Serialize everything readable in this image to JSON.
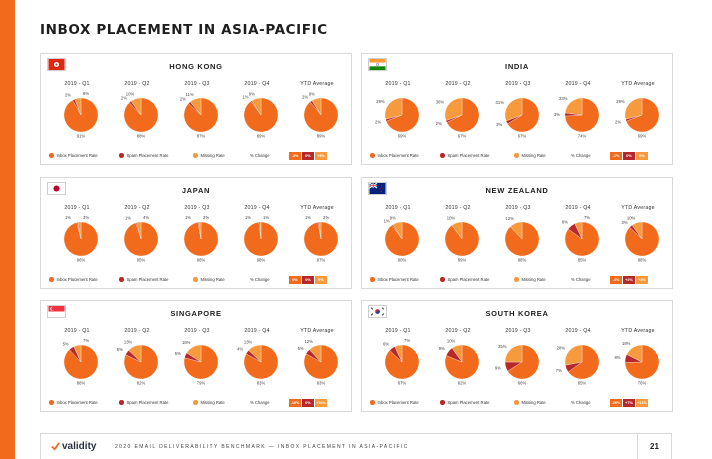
{
  "page": {
    "title": "INBOX PLACEMENT IN ASIA-PACIFIC",
    "footer_text": "2020 EMAIL DELIVERABILITY BENCHMARK — INBOX PLACEMENT IN ASIA-PACIFIC",
    "page_number": "21",
    "logo_text": "validity"
  },
  "colors": {
    "inbox": "#f26b1d",
    "spam": "#b8282a",
    "missing": "#f79a3e",
    "accent_bar": "#f26b1d"
  },
  "legend": {
    "inbox": "Inbox Placement Rate",
    "spam": "Spam Placement Rate",
    "missing": "Missing Rate",
    "change": "% Change"
  },
  "columns": [
    "2019 - Q1",
    "2019 - Q2",
    "2019 - Q3",
    "2019 - Q4",
    "YTD Average"
  ],
  "chart_data": [
    {
      "type": "pie",
      "country": "HONG KONG",
      "flag": "hong-kong-flag",
      "categories": [
        "Inbox Placement Rate",
        "Spam Placement Rate",
        "Missing Rate"
      ],
      "pies": [
        {
          "label": "2019 - Q1",
          "values": [
            91,
            2,
            6
          ],
          "labels": [
            "91%",
            "2%",
            "6%"
          ]
        },
        {
          "label": "2019 - Q2",
          "values": [
            88,
            2,
            10
          ],
          "labels": [
            "88%",
            "2%",
            "10%"
          ]
        },
        {
          "label": "2019 - Q3",
          "values": [
            87,
            2,
            11
          ],
          "labels": [
            "87%",
            "2%",
            "11%"
          ]
        },
        {
          "label": "2019 - Q4",
          "values": [
            89,
            1,
            9
          ],
          "labels": [
            "89%",
            "1%",
            "9%"
          ]
        },
        {
          "label": "YTD Average",
          "values": [
            89,
            2,
            9
          ],
          "labels": [
            "89%",
            "2%",
            "9%"
          ]
        }
      ],
      "change": [
        "-3%",
        "0%",
        "+3%"
      ]
    },
    {
      "type": "pie",
      "country": "INDIA",
      "flag": "india-flag",
      "categories": [
        "Inbox Placement Rate",
        "Spam Placement Rate",
        "Missing Rate"
      ],
      "pies": [
        {
          "label": "2019 - Q1",
          "values": [
            69,
            2,
            29
          ],
          "labels": [
            "69%",
            "2%",
            "29%"
          ]
        },
        {
          "label": "2019 - Q2",
          "values": [
            67,
            2,
            30
          ],
          "labels": [
            "67%",
            "2%",
            "30%"
          ]
        },
        {
          "label": "2019 - Q3",
          "values": [
            67,
            3,
            31
          ],
          "labels": [
            "67%",
            "3%",
            "31%"
          ]
        },
        {
          "label": "2019 - Q4",
          "values": [
            74,
            3,
            23
          ],
          "labels": [
            "74%",
            "3%",
            "23%"
          ]
        },
        {
          "label": "YTD Average",
          "values": [
            69,
            2,
            29
          ],
          "labels": [
            "69%",
            "2%",
            "29%"
          ]
        }
      ],
      "change": [
        "-1%",
        "0%",
        "0%"
      ]
    },
    {
      "type": "pie",
      "country": "JAPAN",
      "flag": "japan-flag",
      "categories": [
        "Inbox Placement Rate",
        "Spam Placement Rate",
        "Missing Rate"
      ],
      "pies": [
        {
          "label": "2019 - Q1",
          "values": [
            96,
            1,
            3
          ],
          "labels": [
            "96%",
            "1%",
            "3%"
          ]
        },
        {
          "label": "2019 - Q2",
          "values": [
            95,
            1,
            4
          ],
          "labels": [
            "95%",
            "1%",
            "4%"
          ]
        },
        {
          "label": "2019 - Q3",
          "values": [
            98,
            1,
            2
          ],
          "labels": [
            "98%",
            "1%",
            "2%"
          ]
        },
        {
          "label": "2019 - Q4",
          "values": [
            98,
            1,
            1
          ],
          "labels": [
            "98%",
            "1%",
            "1%"
          ]
        },
        {
          "label": "YTD Average",
          "values": [
            97,
            1,
            2
          ],
          "labels": [
            "97%",
            "1%",
            "2%"
          ]
        }
      ],
      "change": [
        "0%",
        "0%",
        "0%"
      ]
    },
    {
      "type": "pie",
      "country": "NEW ZEALAND",
      "flag": "new-zealand-flag",
      "categories": [
        "Inbox Placement Rate",
        "Spam Placement Rate",
        "Missing Rate"
      ],
      "pies": [
        {
          "label": "2019 - Q1",
          "values": [
            90,
            1,
            9
          ],
          "labels": [
            "90%",
            "1%",
            "9%"
          ]
        },
        {
          "label": "2019 - Q2",
          "values": [
            89,
            0,
            10
          ],
          "labels": [
            "89%",
            "",
            "10%"
          ]
        },
        {
          "label": "2019 - Q3",
          "values": [
            88,
            0,
            12
          ],
          "labels": [
            "88%",
            "",
            "12%"
          ]
        },
        {
          "label": "2019 - Q4",
          "values": [
            85,
            8,
            7
          ],
          "labels": [
            "85%",
            "8%",
            "7%"
          ]
        },
        {
          "label": "YTD Average",
          "values": [
            88,
            3,
            10
          ],
          "labels": [
            "88%",
            "3%",
            "10%"
          ]
        }
      ],
      "change": [
        "-4%",
        "+2%",
        "+3%"
      ]
    },
    {
      "type": "pie",
      "country": "SINGAPORE",
      "flag": "singapore-flag",
      "categories": [
        "Inbox Placement Rate",
        "Spam Placement Rate",
        "Missing Rate"
      ],
      "pies": [
        {
          "label": "2019 - Q1",
          "values": [
            88,
            5,
            7
          ],
          "labels": [
            "88%",
            "5%",
            "7%"
          ]
        },
        {
          "label": "2019 - Q2",
          "values": [
            82,
            5,
            13
          ],
          "labels": [
            "82%",
            "5%",
            "13%"
          ]
        },
        {
          "label": "2019 - Q3",
          "values": [
            79,
            5,
            16
          ],
          "labels": [
            "79%",
            "5%",
            "16%"
          ]
        },
        {
          "label": "2019 - Q4",
          "values": [
            83,
            4,
            13
          ],
          "labels": [
            "83%",
            "4%",
            "13%"
          ]
        },
        {
          "label": "YTD Average",
          "values": [
            83,
            5,
            12
          ],
          "labels": [
            "83%",
            "5%",
            "12%"
          ]
        }
      ],
      "change": [
        "-10%",
        "0%",
        "+10%"
      ]
    },
    {
      "type": "pie",
      "country": "SOUTH KOREA",
      "flag": "south-korea-flag",
      "categories": [
        "Inbox Placement Rate",
        "Spam Placement Rate",
        "Missing Rate"
      ],
      "pies": [
        {
          "label": "2019 - Q1",
          "values": [
            87,
            6,
            7
          ],
          "labels": [
            "87%",
            "6%",
            "7%"
          ]
        },
        {
          "label": "2019 - Q2",
          "values": [
            82,
            9,
            10
          ],
          "labels": [
            "82%",
            "9%",
            "10%"
          ]
        },
        {
          "label": "2019 - Q3",
          "values": [
            66,
            9,
            25
          ],
          "labels": [
            "66%",
            "9%",
            "25%"
          ]
        },
        {
          "label": "2019 - Q4",
          "values": [
            65,
            7,
            28
          ],
          "labels": [
            "65%",
            "7%",
            "28%"
          ]
        },
        {
          "label": "YTD Average",
          "values": [
            76,
            8,
            18
          ],
          "labels": [
            "76%",
            "8%",
            "18%"
          ]
        }
      ],
      "change": [
        "-20%",
        "+7%",
        "+13%"
      ]
    }
  ]
}
